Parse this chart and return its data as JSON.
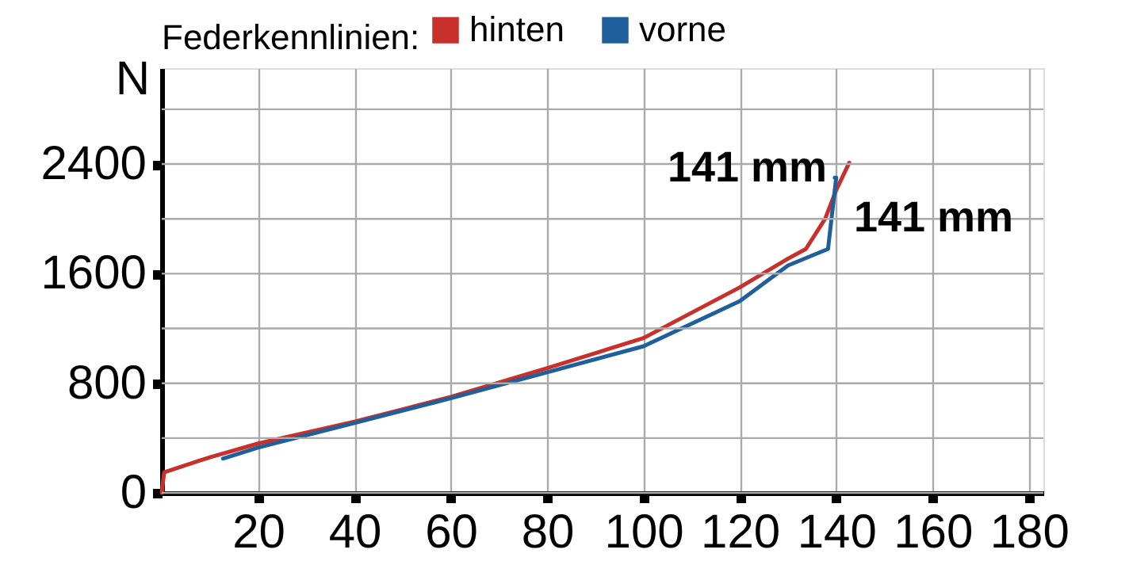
{
  "chart_data": {
    "type": "line",
    "ylabel": "N",
    "legend_title": "Federkennlinien:",
    "series": [
      {
        "name": "hinten",
        "color": "#c8302c",
        "x": [
          0,
          0.5,
          10,
          20,
          40,
          60,
          80,
          100,
          120,
          130,
          133.7,
          137.7,
          140,
          142.7
        ],
        "values": [
          0,
          150,
          260,
          360,
          520,
          700,
          910,
          1130,
          1500,
          1710,
          1780,
          2000,
          2210,
          2410
        ]
      },
      {
        "name": "vorne",
        "color": "#1f5f9c",
        "x": [
          12.7,
          20,
          40,
          60,
          80,
          100,
          120,
          130,
          138.3,
          140,
          139.7
        ],
        "values": [
          250,
          330,
          510,
          690,
          880,
          1070,
          1400,
          1660,
          1780,
          2300,
          2300
        ]
      }
    ],
    "annotations": [
      {
        "text": "141 mm",
        "x": 142.7,
        "y": 2410
      },
      {
        "text": "141 mm",
        "x": 139.7,
        "y": 2300
      }
    ],
    "xlim": [
      0,
      183
    ],
    "xticks": [
      20,
      40,
      60,
      80,
      100,
      120,
      140,
      160,
      180
    ],
    "ylim": [
      0,
      3100
    ],
    "yticks": [
      0,
      {
        "value": 400,
        "label": null
      },
      800,
      {
        "value": 1200,
        "label": null
      },
      1600,
      {
        "value": 2000,
        "label": null
      },
      2400,
      {
        "value": 2800,
        "label": null
      }
    ],
    "grid": true,
    "legend": "top",
    "marker": "none",
    "line_style": "solid"
  }
}
